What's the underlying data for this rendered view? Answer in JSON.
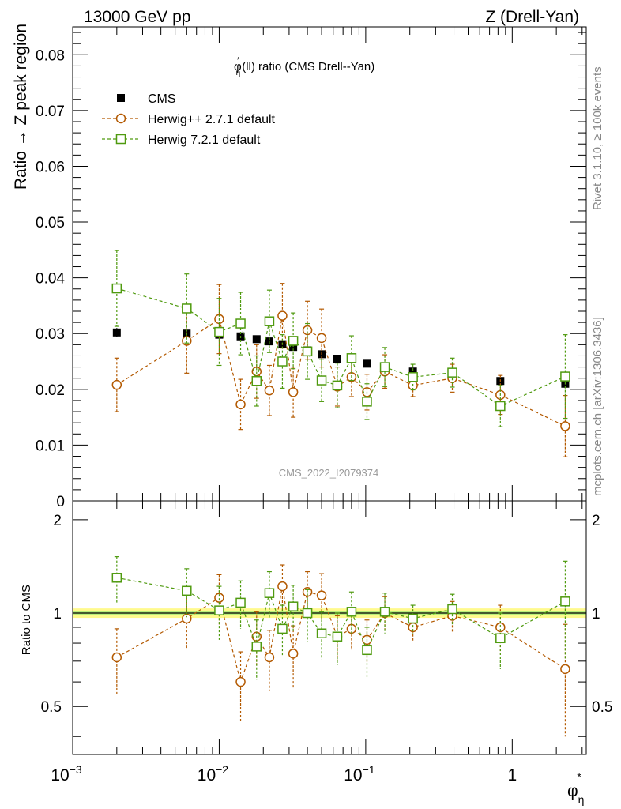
{
  "header": {
    "left": "13000 GeV pp",
    "right": "Z (Drell-Yan)",
    "analysis_id": "CMS_2022_I2079374"
  },
  "side_text": {
    "rivet": "Rivet 3.1.10, ≥ 100k events",
    "mcplots": "mcplots.cern.ch [arXiv:1306.3436]"
  },
  "chart_data": {
    "type": "scatter",
    "title_parts": {
      "base": "φ",
      "sup": "*",
      "sub": "η",
      "rest": "(ll) ratio (CMS Drell--Yan)"
    },
    "xlabel_parts": {
      "base": "φ",
      "sup": "*",
      "sub": "η"
    },
    "ylabel_main": "Ratio → Z peak region",
    "ylabel_ratio": "Ratio to CMS",
    "x_scale": "log",
    "xlim": [
      0.001,
      3.2
    ],
    "ylim_main": [
      0,
      0.085
    ],
    "ylim_ratio": [
      0.35,
      2.3
    ],
    "legend_position": "top-left",
    "x_tick_labels": [
      {
        "x": 0.001,
        "base": "10",
        "exp": "−3"
      },
      {
        "x": 0.01,
        "base": "10",
        "exp": "−2"
      },
      {
        "x": 0.1,
        "base": "10",
        "exp": "−1"
      },
      {
        "x": 1,
        "base": "1",
        "exp": ""
      }
    ],
    "main_y_ticks": [
      "0",
      "0.01",
      "0.02",
      "0.03",
      "0.04",
      "0.05",
      "0.06",
      "0.07",
      "0.08"
    ],
    "main_y_tick_values": [
      0,
      0.01,
      0.02,
      0.03,
      0.04,
      0.05,
      0.06,
      0.07,
      0.08
    ],
    "ratio_y_ticks": [
      "0.5",
      "1",
      "2"
    ],
    "ratio_y_tick_values": [
      0.5,
      1,
      2
    ],
    "x": [
      0.002,
      0.006,
      0.01,
      0.014,
      0.018,
      0.022,
      0.027,
      0.032,
      0.04,
      0.05,
      0.064,
      0.08,
      0.102,
      0.135,
      0.21,
      0.39,
      0.83,
      2.3
    ],
    "series": [
      {
        "name": "CMS",
        "marker": "square-filled",
        "color": "#000000",
        "values": [
          0.0302,
          0.03,
          0.0298,
          0.0295,
          0.029,
          0.0286,
          0.0281,
          0.0276,
          0.027,
          0.0263,
          0.0255,
          0.0255,
          0.0246,
          0.0238,
          0.0232,
          0.0222,
          0.0215,
          0.021
        ],
        "errors": [
          0.0008,
          0.0007,
          0.0007,
          0.0007,
          0.0006,
          0.0006,
          0.0006,
          0.0006,
          0.0006,
          0.0005,
          0.0005,
          0.0005,
          0.0005,
          0.0005,
          0.0005,
          0.0005,
          0.0006,
          0.0008
        ],
        "ratio": [
          1,
          1,
          1,
          1,
          1,
          1,
          1,
          1,
          1,
          1,
          1,
          1,
          1,
          1,
          1,
          1,
          1,
          1
        ],
        "ratio_band": 0.035
      },
      {
        "name": "Herwig++ 2.7.1 default",
        "marker": "circle-open",
        "color": "#b35900",
        "values": [
          0.0208,
          0.0287,
          0.0326,
          0.0173,
          0.0232,
          0.0198,
          0.0332,
          0.0195,
          0.0306,
          0.0292,
          0.0205,
          0.0222,
          0.0195,
          0.0232,
          0.0207,
          0.022,
          0.019,
          0.0134
        ],
        "errors": [
          0.0048,
          0.0058,
          0.0062,
          0.0045,
          0.0048,
          0.0045,
          0.0058,
          0.0045,
          0.0052,
          0.0052,
          0.0035,
          0.0035,
          0.0032,
          0.003,
          0.002,
          0.0025,
          0.0035,
          0.0055
        ],
        "ratio": [
          0.72,
          0.96,
          1.12,
          0.6,
          0.84,
          0.72,
          1.22,
          0.74,
          1.17,
          1.14,
          0.84,
          0.89,
          0.82,
          1.0,
          0.9,
          0.98,
          0.9,
          0.66
        ],
        "ratio_errors": [
          0.17,
          0.19,
          0.21,
          0.15,
          0.17,
          0.16,
          0.21,
          0.17,
          0.19,
          0.2,
          0.14,
          0.13,
          0.13,
          0.13,
          0.09,
          0.11,
          0.16,
          0.26
        ]
      },
      {
        "name": "Herwig 7.2.1 default",
        "marker": "square-open",
        "color": "#4f9a0f",
        "values": [
          0.0381,
          0.0345,
          0.0303,
          0.0318,
          0.0215,
          0.0322,
          0.025,
          0.0287,
          0.0268,
          0.0216,
          0.0207,
          0.0256,
          0.0178,
          0.024,
          0.0222,
          0.023,
          0.017,
          0.0223
        ],
        "errors": [
          0.0068,
          0.0062,
          0.006,
          0.0056,
          0.0045,
          0.0056,
          0.0048,
          0.005,
          0.005,
          0.0038,
          0.004,
          0.004,
          0.0032,
          0.0035,
          0.0023,
          0.0026,
          0.0037,
          0.0075
        ],
        "ratio": [
          1.3,
          1.18,
          1.02,
          1.08,
          0.78,
          1.16,
          0.89,
          1.05,
          1.0,
          0.86,
          0.84,
          1.01,
          0.76,
          1.01,
          0.96,
          1.03,
          0.83,
          1.09
        ],
        "ratio_errors": [
          0.22,
          0.21,
          0.2,
          0.19,
          0.17,
          0.2,
          0.17,
          0.18,
          0.19,
          0.15,
          0.16,
          0.16,
          0.14,
          0.15,
          0.1,
          0.12,
          0.17,
          0.38
        ]
      }
    ]
  }
}
